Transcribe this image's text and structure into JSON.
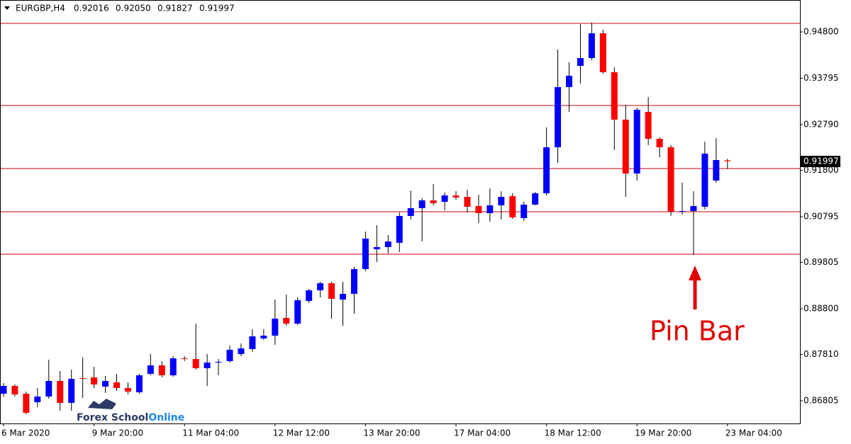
{
  "chart_data": {
    "type": "candlestick",
    "header": {
      "symbol": "EURGBP,H4",
      "open": "0.92016",
      "high": "0.92050",
      "low": "0.91827",
      "close": "0.91997"
    },
    "categories": [
      "6 Mar 2020",
      null,
      null,
      null,
      null,
      null,
      null,
      null,
      "9 Mar 20:00",
      null,
      null,
      null,
      null,
      null,
      null,
      null,
      "11 Mar 04:00",
      null,
      null,
      null,
      null,
      null,
      null,
      null,
      "12 Mar 12:00",
      null,
      null,
      null,
      null,
      null,
      null,
      null,
      "13 Mar 20:00",
      null,
      null,
      null,
      null,
      null,
      null,
      null,
      "17 Mar 04:00",
      null,
      null,
      null,
      null,
      null,
      null,
      null,
      "18 Mar 12:00",
      null,
      null,
      null,
      null,
      null,
      null,
      null,
      "19 Mar 20:00",
      null,
      null,
      null,
      null,
      null,
      null,
      null,
      "23 Mar 04:00"
    ],
    "open": [
      0.86959,
      0.87128,
      0.86959,
      0.86775,
      0.86898,
      0.87235,
      0.8676,
      0.87297,
      0.87312,
      0.87113,
      0.87205,
      0.87082,
      0.8699,
      0.87389,
      0.87573,
      0.87358,
      0.87726,
      0.87711,
      0.87512,
      0.87634,
      0.87665,
      0.87818,
      0.87926,
      0.88156,
      0.88217,
      0.88601,
      0.88478,
      0.88969,
      0.892,
      0.89353,
      0.89,
      0.89123,
      0.8966,
      0.9009,
      0.90136,
      0.90228,
      0.90811,
      0.9098,
      0.91148,
      0.91118,
      0.91256,
      0.91225,
      0.91026,
      0.90872,
      0.91041,
      0.9124,
      0.90765,
      0.91056,
      0.91302,
      0.92299,
      0.93604,
      0.94064,
      0.94233,
      0.9477,
      0.93926,
      0.92898,
      0.91731,
      0.93066,
      0.92483,
      0.92299,
      0.90918,
      0.90918,
      0.9101,
      0.91578,
      0.92016
    ],
    "high": [
      0.87189,
      0.87159,
      0.87005,
      0.87082,
      0.87696,
      0.8745,
      0.87481,
      0.87742,
      0.87542,
      0.87343,
      0.87389,
      0.87205,
      0.87389,
      0.87818,
      0.87665,
      0.87772,
      0.87772,
      0.88478,
      0.87818,
      0.87711,
      0.88003,
      0.88049,
      0.88356,
      0.88356,
      0.89,
      0.89107,
      0.89046,
      0.8923,
      0.89384,
      0.89384,
      0.89384,
      0.89706,
      0.90473,
      0.90611,
      0.90396,
      0.90887,
      0.91363,
      0.91194,
      0.91501,
      0.91317,
      0.91348,
      0.91379,
      0.91271,
      0.91409,
      0.91348,
      0.91302,
      0.91118,
      0.91333,
      0.92729,
      0.94417,
      0.94141,
      0.94969,
      0.95,
      0.94847,
      0.94033,
      0.9322,
      0.93159,
      0.93389,
      0.92514,
      0.92345,
      0.91532,
      0.91348,
      0.92422,
      0.92499,
      0.9205
    ],
    "low": [
      0.86898,
      0.86898,
      0.86514,
      0.86668,
      0.86852,
      0.86591,
      0.86591,
      0.86867,
      0.87082,
      0.86975,
      0.87021,
      0.86944,
      0.86959,
      0.87358,
      0.87312,
      0.87327,
      0.87665,
      0.87481,
      0.87128,
      0.87358,
      0.87634,
      0.87772,
      0.87865,
      0.88125,
      0.88018,
      0.88432,
      0.88447,
      0.88923,
      0.89046,
      0.88586,
      0.88432,
      0.88693,
      0.89614,
      0.89813,
      0.89997,
      0.90028,
      0.90734,
      0.90258,
      0.91041,
      0.90934,
      0.91164,
      0.90887,
      0.90657,
      0.90688,
      0.90734,
      0.90749,
      0.90703,
      0.91041,
      0.91256,
      0.91962,
      0.93066,
      0.9368,
      0.94187,
      0.93895,
      0.92238,
      0.91225,
      0.91578,
      0.92345,
      0.92084,
      0.90811,
      0.90841,
      0.89967,
      0.90949,
      0.91532,
      0.91827
    ],
    "close": [
      0.87128,
      0.86944,
      0.86545,
      0.86898,
      0.87235,
      0.8676,
      0.87281,
      0.87281,
      0.87159,
      0.87235,
      0.87082,
      0.87005,
      0.87358,
      0.87573,
      0.87358,
      0.87726,
      0.87711,
      0.87512,
      0.87634,
      0.8765,
      0.87911,
      0.87941,
      0.88202,
      0.88217,
      0.88586,
      0.88478,
      0.88985,
      0.892,
      0.89353,
      0.89015,
      0.89123,
      0.8966,
      0.9032,
      0.90136,
      0.90258,
      0.90811,
      0.9098,
      0.91148,
      0.91087,
      0.91256,
      0.9121,
      0.9101,
      0.90872,
      0.91041,
      0.91225,
      0.9078,
      0.91056,
      0.91302,
      0.92299,
      0.93604,
      0.93849,
      0.94233,
      0.9477,
      0.93926,
      0.92898,
      0.91731,
      0.93113,
      0.92483,
      0.92299,
      0.90903,
      0.90918,
      0.91026,
      0.92161,
      0.92023,
      0.91997
    ],
    "up_color": "#0000ff",
    "down_color": "#ff0000",
    "ylim": [
      0.86314,
      0.95491
    ],
    "yticks": [
      {
        "value": 0.948,
        "label": "0.94800"
      },
      0.93795,
      {
        "value": 0.9279,
        "label": "0.92790"
      },
      {
        "value": 0.918,
        "label": "0.91800"
      },
      0.90795,
      0.89805,
      {
        "value": 0.888,
        "label": "0.88800"
      },
      {
        "value": 0.8781,
        "label": "0.87810"
      },
      0.86805
    ],
    "levels": [
      0.94985,
      0.93205,
      0.91839,
      0.90903,
      0.89982
    ],
    "level_color": "#cc0000",
    "annotation": "Pin Bar",
    "logo": [
      "Forex School",
      "Online"
    ]
  }
}
